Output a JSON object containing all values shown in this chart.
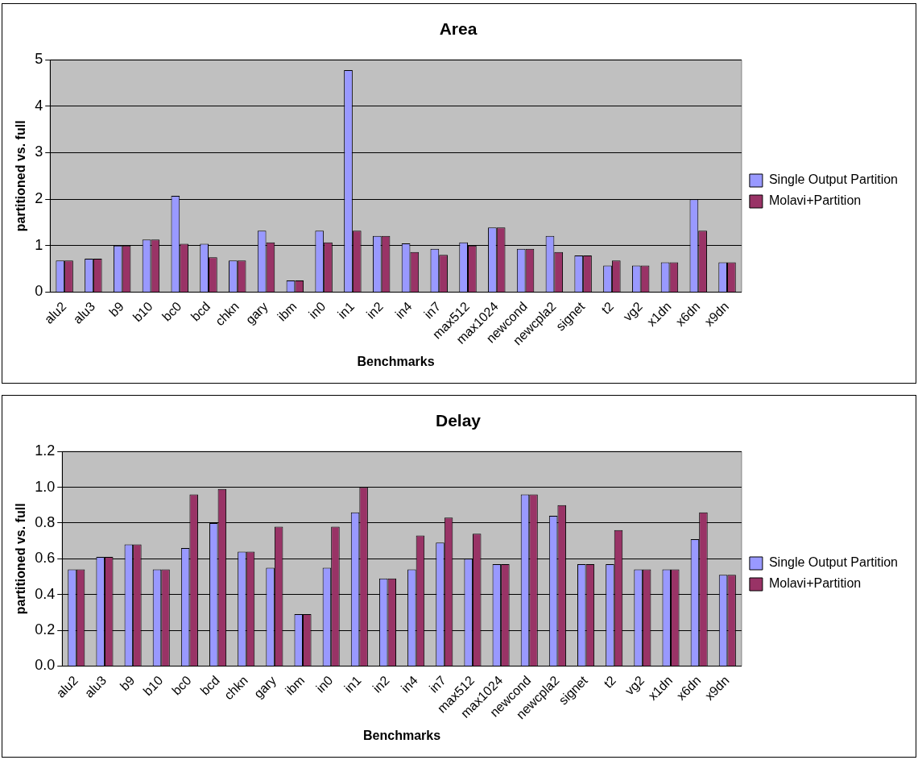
{
  "chart_data": [
    {
      "type": "bar",
      "title": "Area",
      "xlabel": "Benchmarks",
      "ylabel": "partitioned vs. full",
      "categories": [
        "alu2",
        "alu3",
        "b9",
        "b10",
        "bc0",
        "bcd",
        "chkn",
        "gary",
        "ibm",
        "in0",
        "in1",
        "in2",
        "in4",
        "in7",
        "max512",
        "max1024",
        "newcond",
        "newcpla2",
        "signet",
        "t2",
        "vg2",
        "x1dn",
        "x6dn",
        "x9dn"
      ],
      "series": [
        {
          "name": "Single Output Partition",
          "color": "#9999ff",
          "values": [
            0.68,
            0.72,
            1.0,
            1.13,
            2.07,
            1.04,
            0.68,
            1.32,
            0.25,
            1.32,
            4.78,
            1.21,
            1.05,
            0.93,
            1.07,
            1.39,
            0.93,
            1.21,
            0.79,
            0.57,
            0.57,
            0.64,
            2.0,
            0.64
          ]
        },
        {
          "name": "Molavi+Partition",
          "color": "#993366",
          "values": [
            0.68,
            0.72,
            1.0,
            1.13,
            1.04,
            0.75,
            0.68,
            1.07,
            0.25,
            1.07,
            1.32,
            1.21,
            0.86,
            0.8,
            1.0,
            1.39,
            0.93,
            0.86,
            0.79,
            0.68,
            0.57,
            0.64,
            1.32,
            0.64
          ]
        }
      ],
      "ylim": [
        0,
        5
      ],
      "yticks": [
        0,
        1,
        2,
        3,
        4,
        5
      ],
      "grid": "y",
      "legend": "right"
    },
    {
      "type": "bar",
      "title": "Delay",
      "xlabel": "Benchmarks",
      "ylabel": "partitioned vs. full",
      "categories": [
        "alu2",
        "alu3",
        "b9",
        "b10",
        "bc0",
        "bcd",
        "chkn",
        "gary",
        "ibm",
        "in0",
        "in1",
        "in2",
        "in4",
        "in7",
        "max512",
        "max1024",
        "newcond",
        "newcpla2",
        "signet",
        "t2",
        "vg2",
        "x1dn",
        "x6dn",
        "x9dn"
      ],
      "series": [
        {
          "name": "Single Output Partition",
          "color": "#9999ff",
          "values": [
            0.54,
            0.61,
            0.68,
            0.54,
            0.66,
            0.8,
            0.64,
            0.55,
            0.29,
            0.55,
            0.86,
            0.49,
            0.54,
            0.69,
            0.6,
            0.57,
            0.96,
            0.84,
            0.57,
            0.57,
            0.54,
            0.54,
            0.71,
            0.51
          ]
        },
        {
          "name": "Molavi+Partition",
          "color": "#993366",
          "values": [
            0.54,
            0.61,
            0.68,
            0.54,
            0.96,
            0.99,
            0.64,
            0.78,
            0.29,
            0.78,
            1.0,
            0.49,
            0.73,
            0.83,
            0.74,
            0.57,
            0.96,
            0.9,
            0.57,
            0.76,
            0.54,
            0.54,
            0.86,
            0.51
          ]
        }
      ],
      "ylim": [
        0,
        1.2
      ],
      "yticks": [
        {
          "value": 0,
          "label": "0.0"
        },
        {
          "value": 0.2,
          "label": "0.2"
        },
        {
          "value": 0.4,
          "label": "0.4"
        },
        {
          "value": 0.6,
          "label": "0.6"
        },
        {
          "value": 0.8,
          "label": "0.8"
        },
        {
          "value": 1,
          "label": "1.0"
        },
        {
          "value": 1.2,
          "label": "1.2"
        }
      ],
      "grid": "y",
      "legend": "right"
    }
  ]
}
